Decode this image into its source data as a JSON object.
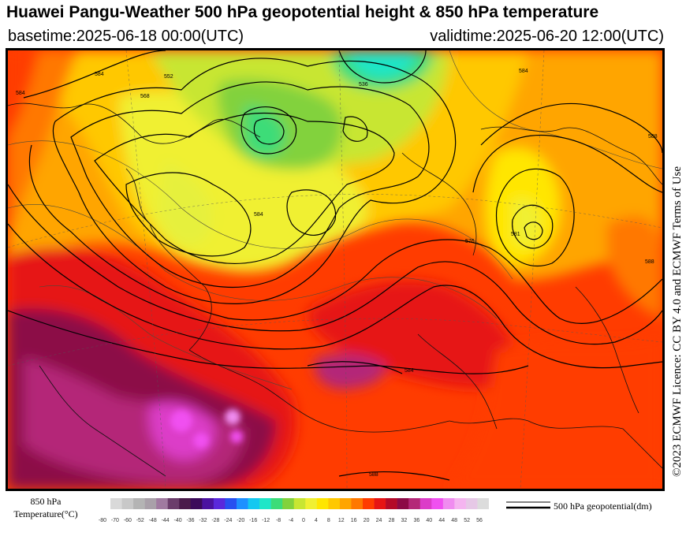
{
  "header": {
    "title": "Huawei Pangu-Weather 500 hPa geopotential height & 850 hPa temperature",
    "basetime": "basetime:2025-06-18 00:00(UTC)",
    "validtime": "validtime:2025-06-20 12:00(UTC)"
  },
  "license": "©2023 ECMWF Licence: CC BY 4.0 and ECMWF Terms of Use",
  "colorbar": {
    "label_line1": "850 hPa",
    "label_line2": "Temperature(°C)",
    "ticks": [
      "-80",
      "-70",
      "-60",
      "-52",
      "-48",
      "-44",
      "-40",
      "-36",
      "-32",
      "-28",
      "-24",
      "-20",
      "-16",
      "-12",
      "-8",
      "-4",
      "0",
      "4",
      "8",
      "12",
      "16",
      "20",
      "24",
      "28",
      "32",
      "36",
      "40",
      "44",
      "48",
      "52",
      "56"
    ],
    "colors": [
      "#d9d9d9",
      "#c8c8c8",
      "#b4b4b4",
      "#a9a0a9",
      "#a07aa0",
      "#6b3d6b",
      "#4a1a4a",
      "#3c0a5a",
      "#4b12a0",
      "#5a28dc",
      "#2850f0",
      "#1e90ff",
      "#14c8f0",
      "#1ee6c8",
      "#3cdc78",
      "#82d23c",
      "#c8e632",
      "#f0f032",
      "#ffe600",
      "#ffc800",
      "#ffa500",
      "#ff7800",
      "#ff3c00",
      "#e61414",
      "#b40a28",
      "#8c0a46",
      "#b42878",
      "#dc3cc8",
      "#f050f0",
      "#f08cf0",
      "#f5b4f0",
      "#e6c8e6",
      "#dcdcdc"
    ]
  },
  "legend": {
    "label": "500 hPa geopotential(dm)"
  },
  "map": {
    "contour_labels": [
      "584",
      "536",
      "588",
      "584",
      "576",
      "581",
      "584",
      "552",
      "568",
      "588",
      "584",
      "584",
      "588"
    ]
  }
}
